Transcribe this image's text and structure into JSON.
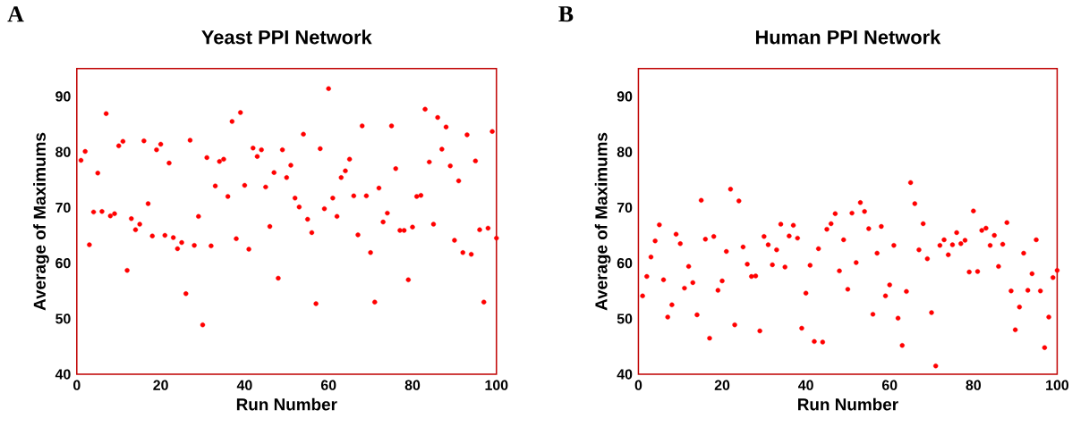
{
  "chart_data": [
    {
      "type": "scatter",
      "title": "Yeast PPI Network",
      "xlabel": "Run Number",
      "ylabel": "Average of Maximums",
      "annotations": [
        "A"
      ],
      "color": "#ff0000",
      "xlim": [
        0,
        100
      ],
      "ylim": [
        40,
        95
      ],
      "xticks": [
        0,
        20,
        40,
        60,
        80,
        100
      ],
      "yticks": [
        40,
        50,
        60,
        70,
        80,
        90
      ],
      "x": [
        1,
        2,
        3,
        4,
        5,
        6,
        7,
        8,
        9,
        10,
        11,
        12,
        13,
        14,
        15,
        16,
        17,
        18,
        19,
        20,
        21,
        22,
        23,
        24,
        25,
        26,
        27,
        28,
        29,
        30,
        31,
        32,
        33,
        34,
        35,
        36,
        37,
        38,
        39,
        40,
        41,
        42,
        43,
        44,
        45,
        46,
        47,
        48,
        49,
        50,
        51,
        52,
        53,
        54,
        55,
        56,
        57,
        58,
        59,
        60,
        61,
        62,
        63,
        64,
        65,
        66,
        67,
        68,
        69,
        70,
        71,
        72,
        73,
        74,
        75,
        76,
        77,
        78,
        79,
        80,
        81,
        82,
        83,
        84,
        85,
        86,
        87,
        88,
        89,
        90,
        91,
        92,
        93,
        94,
        95,
        96,
        97,
        98,
        99,
        100
      ],
      "values": [
        78.5,
        80.1,
        63.3,
        69.2,
        76.2,
        69.3,
        86.9,
        68.5,
        68.9,
        81.1,
        81.9,
        58.7,
        68.0,
        66.0,
        67.0,
        82.0,
        70.7,
        64.9,
        80.4,
        81.4,
        65.0,
        78.0,
        64.6,
        62.6,
        63.7,
        54.5,
        82.1,
        63.2,
        68.4,
        48.9,
        79.0,
        63.1,
        73.9,
        78.3,
        78.7,
        72.0,
        85.5,
        64.4,
        87.1,
        74.0,
        62.5,
        80.7,
        79.2,
        80.4,
        73.7,
        66.6,
        76.3,
        57.3,
        80.4,
        75.4,
        77.6,
        71.7,
        70.1,
        83.2,
        67.9,
        65.5,
        52.7,
        80.6,
        69.8,
        91.4,
        71.7,
        68.4,
        75.4,
        76.6,
        78.7,
        72.1,
        65.1,
        84.7,
        72.1,
        61.9,
        53.0,
        73.5,
        67.4,
        69.0,
        84.7,
        77.0,
        65.9,
        65.9,
        57.0,
        66.5,
        72.0,
        72.2,
        87.7,
        78.2,
        67.0,
        86.2,
        80.5,
        84.5,
        77.5,
        64.1,
        74.8,
        61.9,
        83.1,
        61.6,
        78.4,
        66.0,
        53.0,
        66.3,
        83.7,
        64.5
      ]
    },
    {
      "type": "scatter",
      "title": "Human PPI Network",
      "xlabel": "Run Number",
      "ylabel": "Average of Maximums",
      "annotations": [
        "B"
      ],
      "color": "#ff0000",
      "xlim": [
        0,
        100
      ],
      "ylim": [
        40,
        95
      ],
      "xticks": [
        0,
        20,
        40,
        60,
        80,
        100
      ],
      "yticks": [
        40,
        50,
        60,
        70,
        80,
        90
      ],
      "x": [
        1,
        2,
        3,
        4,
        5,
        6,
        7,
        8,
        9,
        10,
        11,
        12,
        13,
        14,
        15,
        16,
        17,
        18,
        19,
        20,
        21,
        22,
        23,
        24,
        25,
        26,
        27,
        28,
        29,
        30,
        31,
        32,
        33,
        34,
        35,
        36,
        37,
        38,
        39,
        40,
        41,
        42,
        43,
        44,
        45,
        46,
        47,
        48,
        49,
        50,
        51,
        52,
        53,
        54,
        55,
        56,
        57,
        58,
        59,
        60,
        61,
        62,
        63,
        64,
        65,
        66,
        67,
        68,
        69,
        70,
        71,
        72,
        73,
        74,
        75,
        76,
        77,
        78,
        79,
        80,
        81,
        82,
        83,
        84,
        85,
        86,
        87,
        88,
        89,
        90,
        91,
        92,
        93,
        94,
        95,
        96,
        97,
        98,
        99,
        100
      ],
      "values": [
        54.1,
        57.6,
        61.1,
        64.0,
        66.9,
        57.0,
        50.3,
        52.5,
        65.2,
        63.5,
        55.5,
        59.4,
        56.5,
        50.7,
        71.3,
        64.3,
        46.5,
        64.8,
        55.1,
        56.8,
        62.1,
        73.3,
        48.9,
        71.2,
        62.9,
        59.8,
        57.6,
        57.7,
        47.8,
        64.8,
        63.3,
        59.7,
        62.4,
        67.0,
        59.3,
        64.9,
        66.8,
        64.5,
        48.3,
        54.6,
        59.6,
        45.9,
        62.6,
        45.8,
        66.1,
        67.1,
        68.9,
        58.6,
        64.2,
        55.3,
        69.0,
        60.1,
        70.9,
        69.3,
        66.2,
        50.8,
        61.8,
        66.6,
        54.1,
        56.1,
        63.2,
        50.1,
        45.2,
        54.9,
        74.5,
        70.7,
        62.4,
        67.1,
        60.8,
        51.1,
        41.5,
        63.2,
        64.2,
        61.5,
        63.3,
        65.5,
        63.5,
        64.1,
        58.4,
        69.4,
        58.5,
        65.9,
        66.3,
        63.2,
        65.0,
        59.4,
        63.4,
        67.3,
        55.0,
        48.0,
        52.1,
        61.8,
        55.1,
        58.1,
        64.2,
        55.0,
        44.8,
        50.3,
        57.4,
        58.7
      ]
    }
  ]
}
